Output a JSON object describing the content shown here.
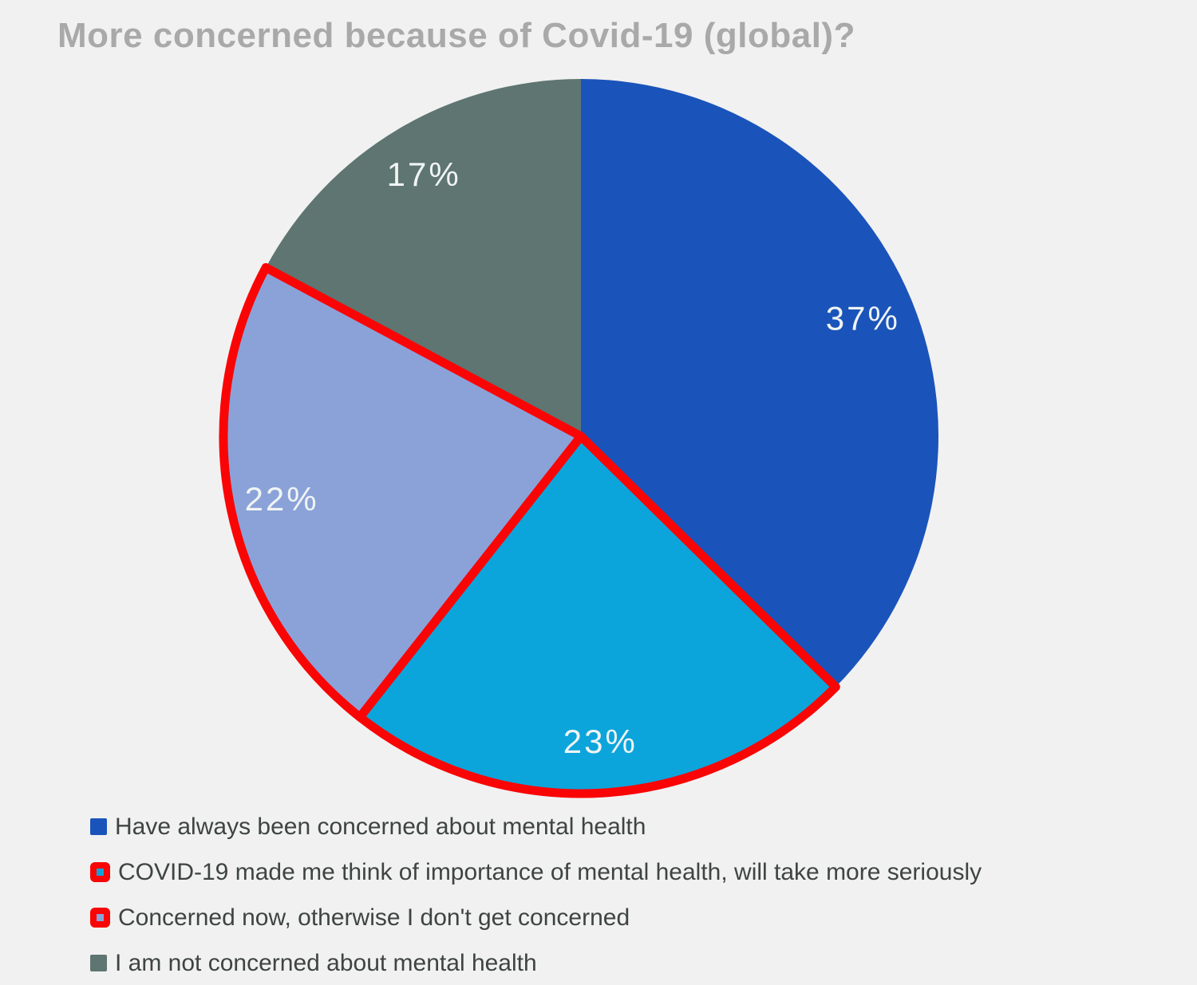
{
  "title": "More concerned because of Covid-19 (global)?",
  "colors": {
    "background": "#F1F1F1",
    "title": "#A9A9A9",
    "legend_text": "#3E4442",
    "slice_label_text": "#F0F4F3",
    "outline": "#FA0505"
  },
  "chart_data": {
    "type": "pie",
    "title": "More concerned because of Covid-19 (global)?",
    "start_angle_deg": 0,
    "direction": "clockwise",
    "legend_position": "bottom-left",
    "slices": [
      {
        "label": "Have always been concerned about mental health",
        "value": 37,
        "display": "37%",
        "color": "#1A54BA",
        "outlined": false
      },
      {
        "label": "COVID-19 made me think of importance of mental health, will take more seriously",
        "value": 23,
        "display": "23%",
        "color": "#0BA5DC",
        "outlined": true
      },
      {
        "label": "Concerned now, otherwise I don't get concerned",
        "value": 22,
        "display": "22%",
        "color": "#8BA2D9",
        "outlined": true
      },
      {
        "label": "I am not concerned about mental health",
        "value": 17,
        "display": "17%",
        "color": "#5E7571",
        "outlined": false
      }
    ]
  }
}
